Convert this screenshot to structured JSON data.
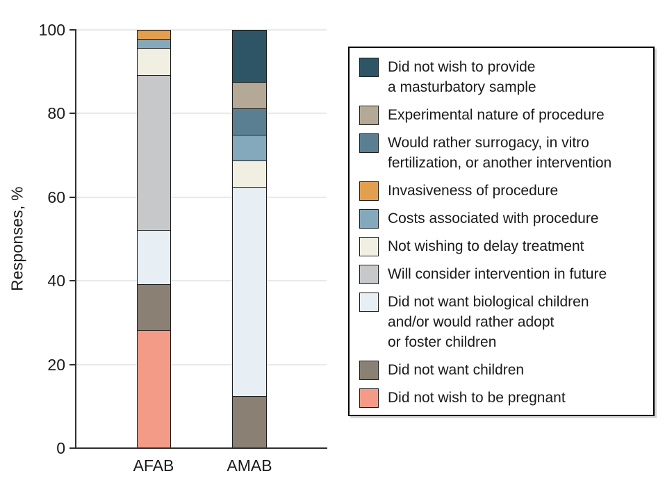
{
  "chart_data": {
    "type": "bar",
    "stacked": true,
    "title": "",
    "xlabel": "",
    "ylabel": "Responses, %",
    "ylim": [
      0,
      100
    ],
    "yticks": [
      0,
      20,
      40,
      60,
      80,
      100
    ],
    "grid": "horizontal",
    "legend_position": "right",
    "categories": [
      "AFAB",
      "AMAB"
    ],
    "series": [
      {
        "name": "Did not wish to be pregnant",
        "color": "#F49B87",
        "values": [
          28.3,
          0
        ]
      },
      {
        "name": "Did not want children",
        "color": "#8A8174",
        "values": [
          10.9,
          12.5
        ]
      },
      {
        "name": "Did not want biological children and/or would rather adopt or foster children",
        "color": "#E7EFF4",
        "values": [
          13.0,
          50.0
        ]
      },
      {
        "name": "Will consider intervention in future",
        "color": "#C6C8CA",
        "values": [
          37.0,
          0
        ]
      },
      {
        "name": "Not wishing to delay treatment",
        "color": "#F0EFE2",
        "values": [
          6.5,
          6.25
        ]
      },
      {
        "name": "Costs associated with procedure",
        "color": "#85A9BC",
        "values": [
          2.2,
          6.25
        ]
      },
      {
        "name": "Invasiveness of procedure",
        "color": "#E2A04F",
        "values": [
          2.1,
          0
        ]
      },
      {
        "name": "Would rather surrogacy, in vitro fertilization, or another intervention",
        "color": "#5A7F93",
        "values": [
          0,
          6.25
        ]
      },
      {
        "name": "Experimental nature of procedure",
        "color": "#B4A996",
        "values": [
          0,
          6.25
        ]
      },
      {
        "name": "Did not wish to provide a masturbatory sample",
        "color": "#2D5565",
        "values": [
          0,
          12.5
        ]
      }
    ]
  },
  "legend": {
    "items": [
      {
        "color": "#2D5565",
        "lines": [
          "Did not wish to provide",
          "a masturbatory sample"
        ]
      },
      {
        "color": "#B4A996",
        "lines": [
          "Experimental nature of procedure"
        ]
      },
      {
        "color": "#5A7F93",
        "lines": [
          "Would rather surrogacy, in vitro",
          "fertilization, or another intervention"
        ]
      },
      {
        "color": "#E2A04F",
        "lines": [
          "Invasiveness of procedure"
        ]
      },
      {
        "color": "#85A9BC",
        "lines": [
          "Costs associated with procedure"
        ]
      },
      {
        "color": "#F0EFE2",
        "lines": [
          "Not wishing to delay treatment"
        ]
      },
      {
        "color": "#C6C8CA",
        "lines": [
          "Will consider intervention in future"
        ]
      },
      {
        "color": "#E7EFF4",
        "lines": [
          "Did not want biological children",
          "and/or would rather adopt",
          "or foster children"
        ]
      },
      {
        "color": "#8A8174",
        "lines": [
          "Did not want children"
        ]
      },
      {
        "color": "#F49B87",
        "lines": [
          "Did not wish to be pregnant"
        ]
      }
    ]
  },
  "colors": {
    "axis": "#2e2e2e",
    "gridline": "#e9e9e9",
    "segment_border": "#1c1c1c",
    "legend_border": "#000000",
    "text": "#1a1a1a"
  }
}
